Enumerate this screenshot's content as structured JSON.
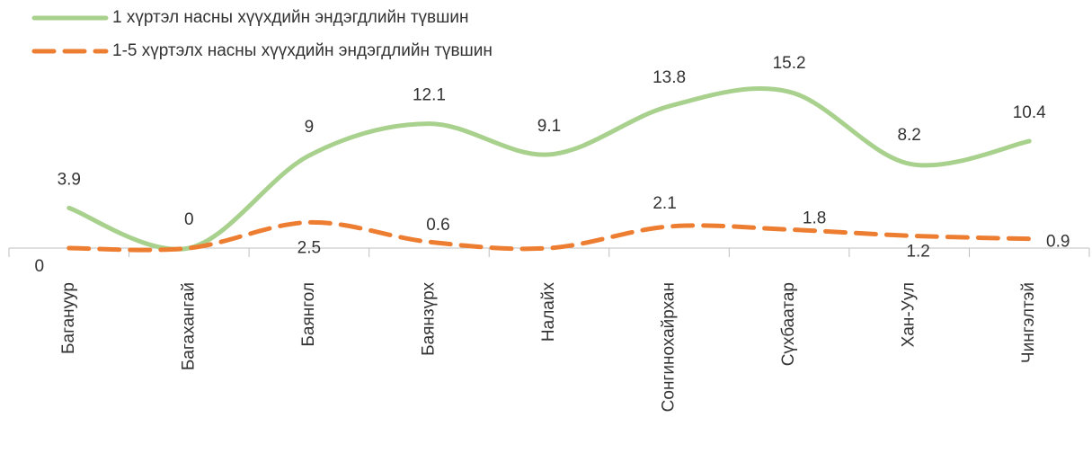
{
  "chart_data": {
    "type": "line",
    "categories": [
      "Багануур",
      "Багахангай",
      "Баянгол",
      "Баянзүрх",
      "Налайх",
      "Сонгинохайрхан",
      "Сүхбаатар",
      "Хан-Уул",
      "Чингэлтэй"
    ],
    "series": [
      {
        "name": "1 хүртэл насны хүүхдийн эндэгдлийн түвшин",
        "color": "#a9d18e",
        "dash": false,
        "values": [
          3.9,
          0,
          9,
          12.1,
          9.1,
          13.8,
          15.2,
          8.2,
          10.4
        ]
      },
      {
        "name": "1-5 хүртэлх насны хүүхдийн эндэгдлийн түвшин",
        "color": "#ed7d31",
        "dash": true,
        "values": [
          0,
          0,
          2.5,
          0.6,
          0,
          2.1,
          1.8,
          1.2,
          0.9
        ],
        "value_labels": [
          "0",
          null,
          "2.5",
          "0.6",
          null,
          "2.1",
          "1.8",
          "1.2",
          "0.9"
        ]
      }
    ],
    "ylim": [
      0,
      16
    ]
  }
}
